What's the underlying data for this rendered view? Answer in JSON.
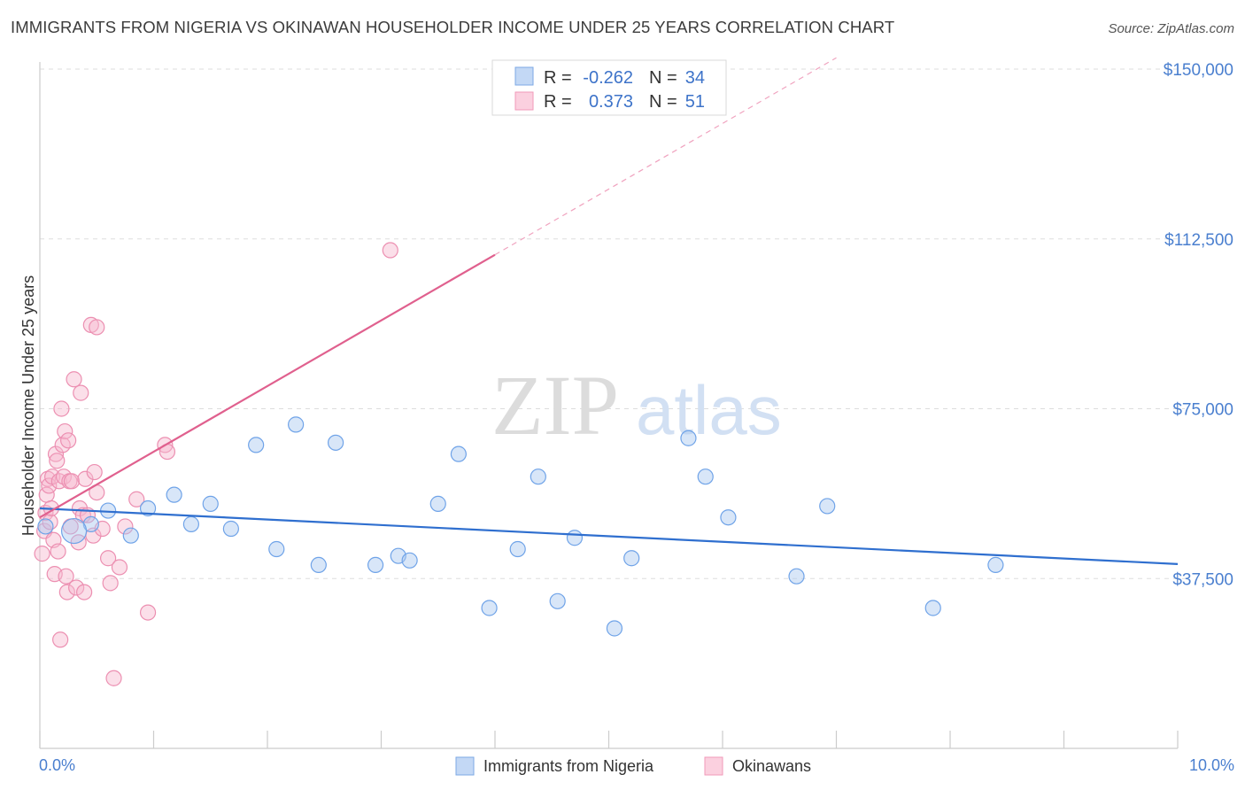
{
  "title": "IMMIGRANTS FROM NIGERIA VS OKINAWAN HOUSEHOLDER INCOME UNDER 25 YEARS CORRELATION CHART",
  "source": "Source: ZipAtlas.com",
  "watermark": {
    "part1": "ZIP",
    "part2": "atlas"
  },
  "legend_box": {
    "rows": [
      {
        "r_label": "R =",
        "r_value": "-0.262",
        "n_label": "N =",
        "n_value": "34"
      },
      {
        "r_label": "R =",
        "r_value": "0.373",
        "n_label": "N =",
        "n_value": "51"
      }
    ]
  },
  "chart_data": {
    "type": "scatter",
    "xlabel": "",
    "ylabel": "Householder Income Under 25 years",
    "xlim": [
      0,
      10
    ],
    "ylim": [
      10000,
      155000
    ],
    "x_tick_labels": [
      "0.0%",
      "10.0%"
    ],
    "y_ticks": [
      37500,
      75000,
      112500,
      150000
    ],
    "y_tick_labels": [
      "$37,500",
      "$75,000",
      "$112,500",
      "$150,000"
    ],
    "grid": true,
    "legend_position": "bottom-center",
    "colors": {
      "nigeria": "#6fa3e8",
      "okinawan": "#f09ab9",
      "nigeria_line": "#2f6fcf",
      "okinawan_line": "#e0608e"
    },
    "series": [
      {
        "name": "Immigrants from Nigeria",
        "r": -0.262,
        "n": 34,
        "trend": {
          "x": [
            0.0,
            10.0
          ],
          "y": [
            53000,
            40700
          ]
        },
        "points": [
          [
            0.05,
            49000
          ],
          [
            0.45,
            49500
          ],
          [
            0.8,
            47000
          ],
          [
            0.95,
            53000
          ],
          [
            1.18,
            56000
          ],
          [
            1.33,
            49500
          ],
          [
            1.5,
            54000
          ],
          [
            1.68,
            48500
          ],
          [
            1.9,
            67000
          ],
          [
            2.08,
            44000
          ],
          [
            2.25,
            71500
          ],
          [
            2.45,
            40500
          ],
          [
            2.6,
            67500
          ],
          [
            2.95,
            40500
          ],
          [
            3.15,
            42500
          ],
          [
            3.25,
            41500
          ],
          [
            3.5,
            54000
          ],
          [
            3.68,
            65000
          ],
          [
            3.95,
            31000
          ],
          [
            4.2,
            44000
          ],
          [
            4.38,
            60000
          ],
          [
            4.55,
            32500
          ],
          [
            4.7,
            46500
          ],
          [
            5.05,
            26500
          ],
          [
            5.2,
            42000
          ],
          [
            5.7,
            68500
          ],
          [
            5.85,
            60000
          ],
          [
            6.05,
            51000
          ],
          [
            6.65,
            38000
          ],
          [
            6.92,
            53500
          ],
          [
            7.85,
            31000
          ],
          [
            8.4,
            40500
          ],
          [
            0.3,
            48000
          ],
          [
            0.6,
            52500
          ]
        ]
      },
      {
        "name": "Okinawans",
        "r": 0.373,
        "n": 51,
        "trend": {
          "x": [
            0.0,
            4.0
          ],
          "y": [
            51000,
            109000
          ]
        },
        "trend_extended": {
          "x": [
            4.0,
            7.0
          ],
          "y": [
            109000,
            152500
          ]
        },
        "points": [
          [
            0.02,
            43000
          ],
          [
            0.04,
            48000
          ],
          [
            0.05,
            52000
          ],
          [
            0.06,
            56000
          ],
          [
            0.07,
            59500
          ],
          [
            0.08,
            58000
          ],
          [
            0.09,
            50000
          ],
          [
            0.1,
            53000
          ],
          [
            0.11,
            60000
          ],
          [
            0.12,
            46000
          ],
          [
            0.13,
            38500
          ],
          [
            0.14,
            65000
          ],
          [
            0.15,
            63500
          ],
          [
            0.16,
            43500
          ],
          [
            0.17,
            59000
          ],
          [
            0.18,
            24000
          ],
          [
            0.19,
            75000
          ],
          [
            0.2,
            67000
          ],
          [
            0.21,
            60000
          ],
          [
            0.22,
            70000
          ],
          [
            0.23,
            38000
          ],
          [
            0.24,
            34500
          ],
          [
            0.25,
            68000
          ],
          [
            0.26,
            59000
          ],
          [
            0.27,
            49000
          ],
          [
            0.28,
            59000
          ],
          [
            0.3,
            81500
          ],
          [
            0.32,
            35500
          ],
          [
            0.34,
            45500
          ],
          [
            0.35,
            53000
          ],
          [
            0.36,
            78500
          ],
          [
            0.38,
            51500
          ],
          [
            0.39,
            34500
          ],
          [
            0.4,
            59500
          ],
          [
            0.42,
            51500
          ],
          [
            0.45,
            93500
          ],
          [
            0.47,
            47000
          ],
          [
            0.48,
            61000
          ],
          [
            0.5,
            56500
          ],
          [
            0.5,
            93000
          ],
          [
            0.55,
            48500
          ],
          [
            0.6,
            42000
          ],
          [
            0.62,
            36500
          ],
          [
            0.65,
            15500
          ],
          [
            0.7,
            40000
          ],
          [
            0.75,
            49000
          ],
          [
            0.85,
            55000
          ],
          [
            0.95,
            30000
          ],
          [
            1.1,
            67000
          ],
          [
            1.12,
            65500
          ],
          [
            3.08,
            110000
          ]
        ]
      }
    ]
  }
}
